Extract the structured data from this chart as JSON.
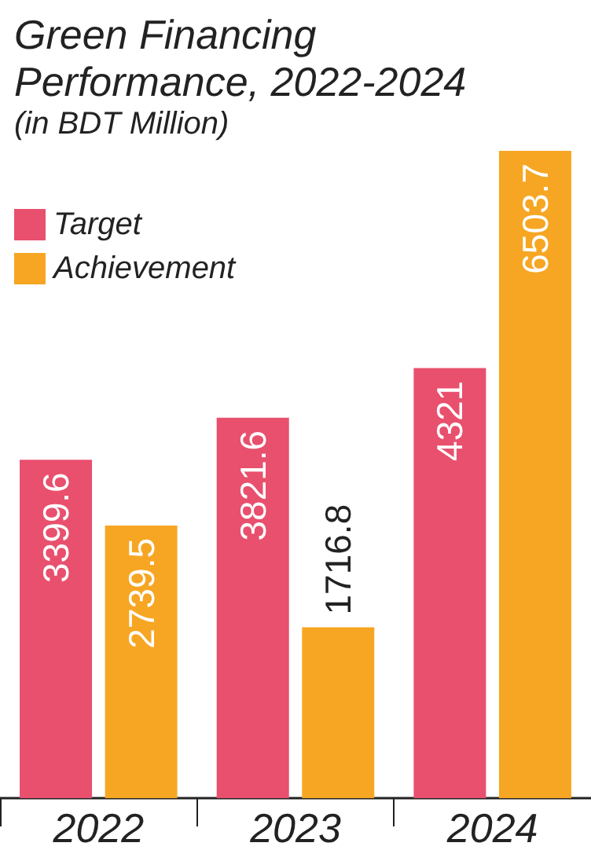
{
  "chart_data": {
    "type": "bar",
    "title": "Green Financing Performance, 2022-2024",
    "subtitle": "(in BDT Million)",
    "categories": [
      "2022",
      "2023",
      "2024"
    ],
    "series": [
      {
        "name": "Target",
        "color": "#e8506e",
        "values": [
          3399.6,
          3821.6,
          4321
        ]
      },
      {
        "name": "Achievement",
        "color": "#f6a623",
        "values": [
          2739.5,
          1716.8,
          6503.7
        ]
      }
    ],
    "data_labels": true,
    "legend": "top left",
    "grid": false
  }
}
